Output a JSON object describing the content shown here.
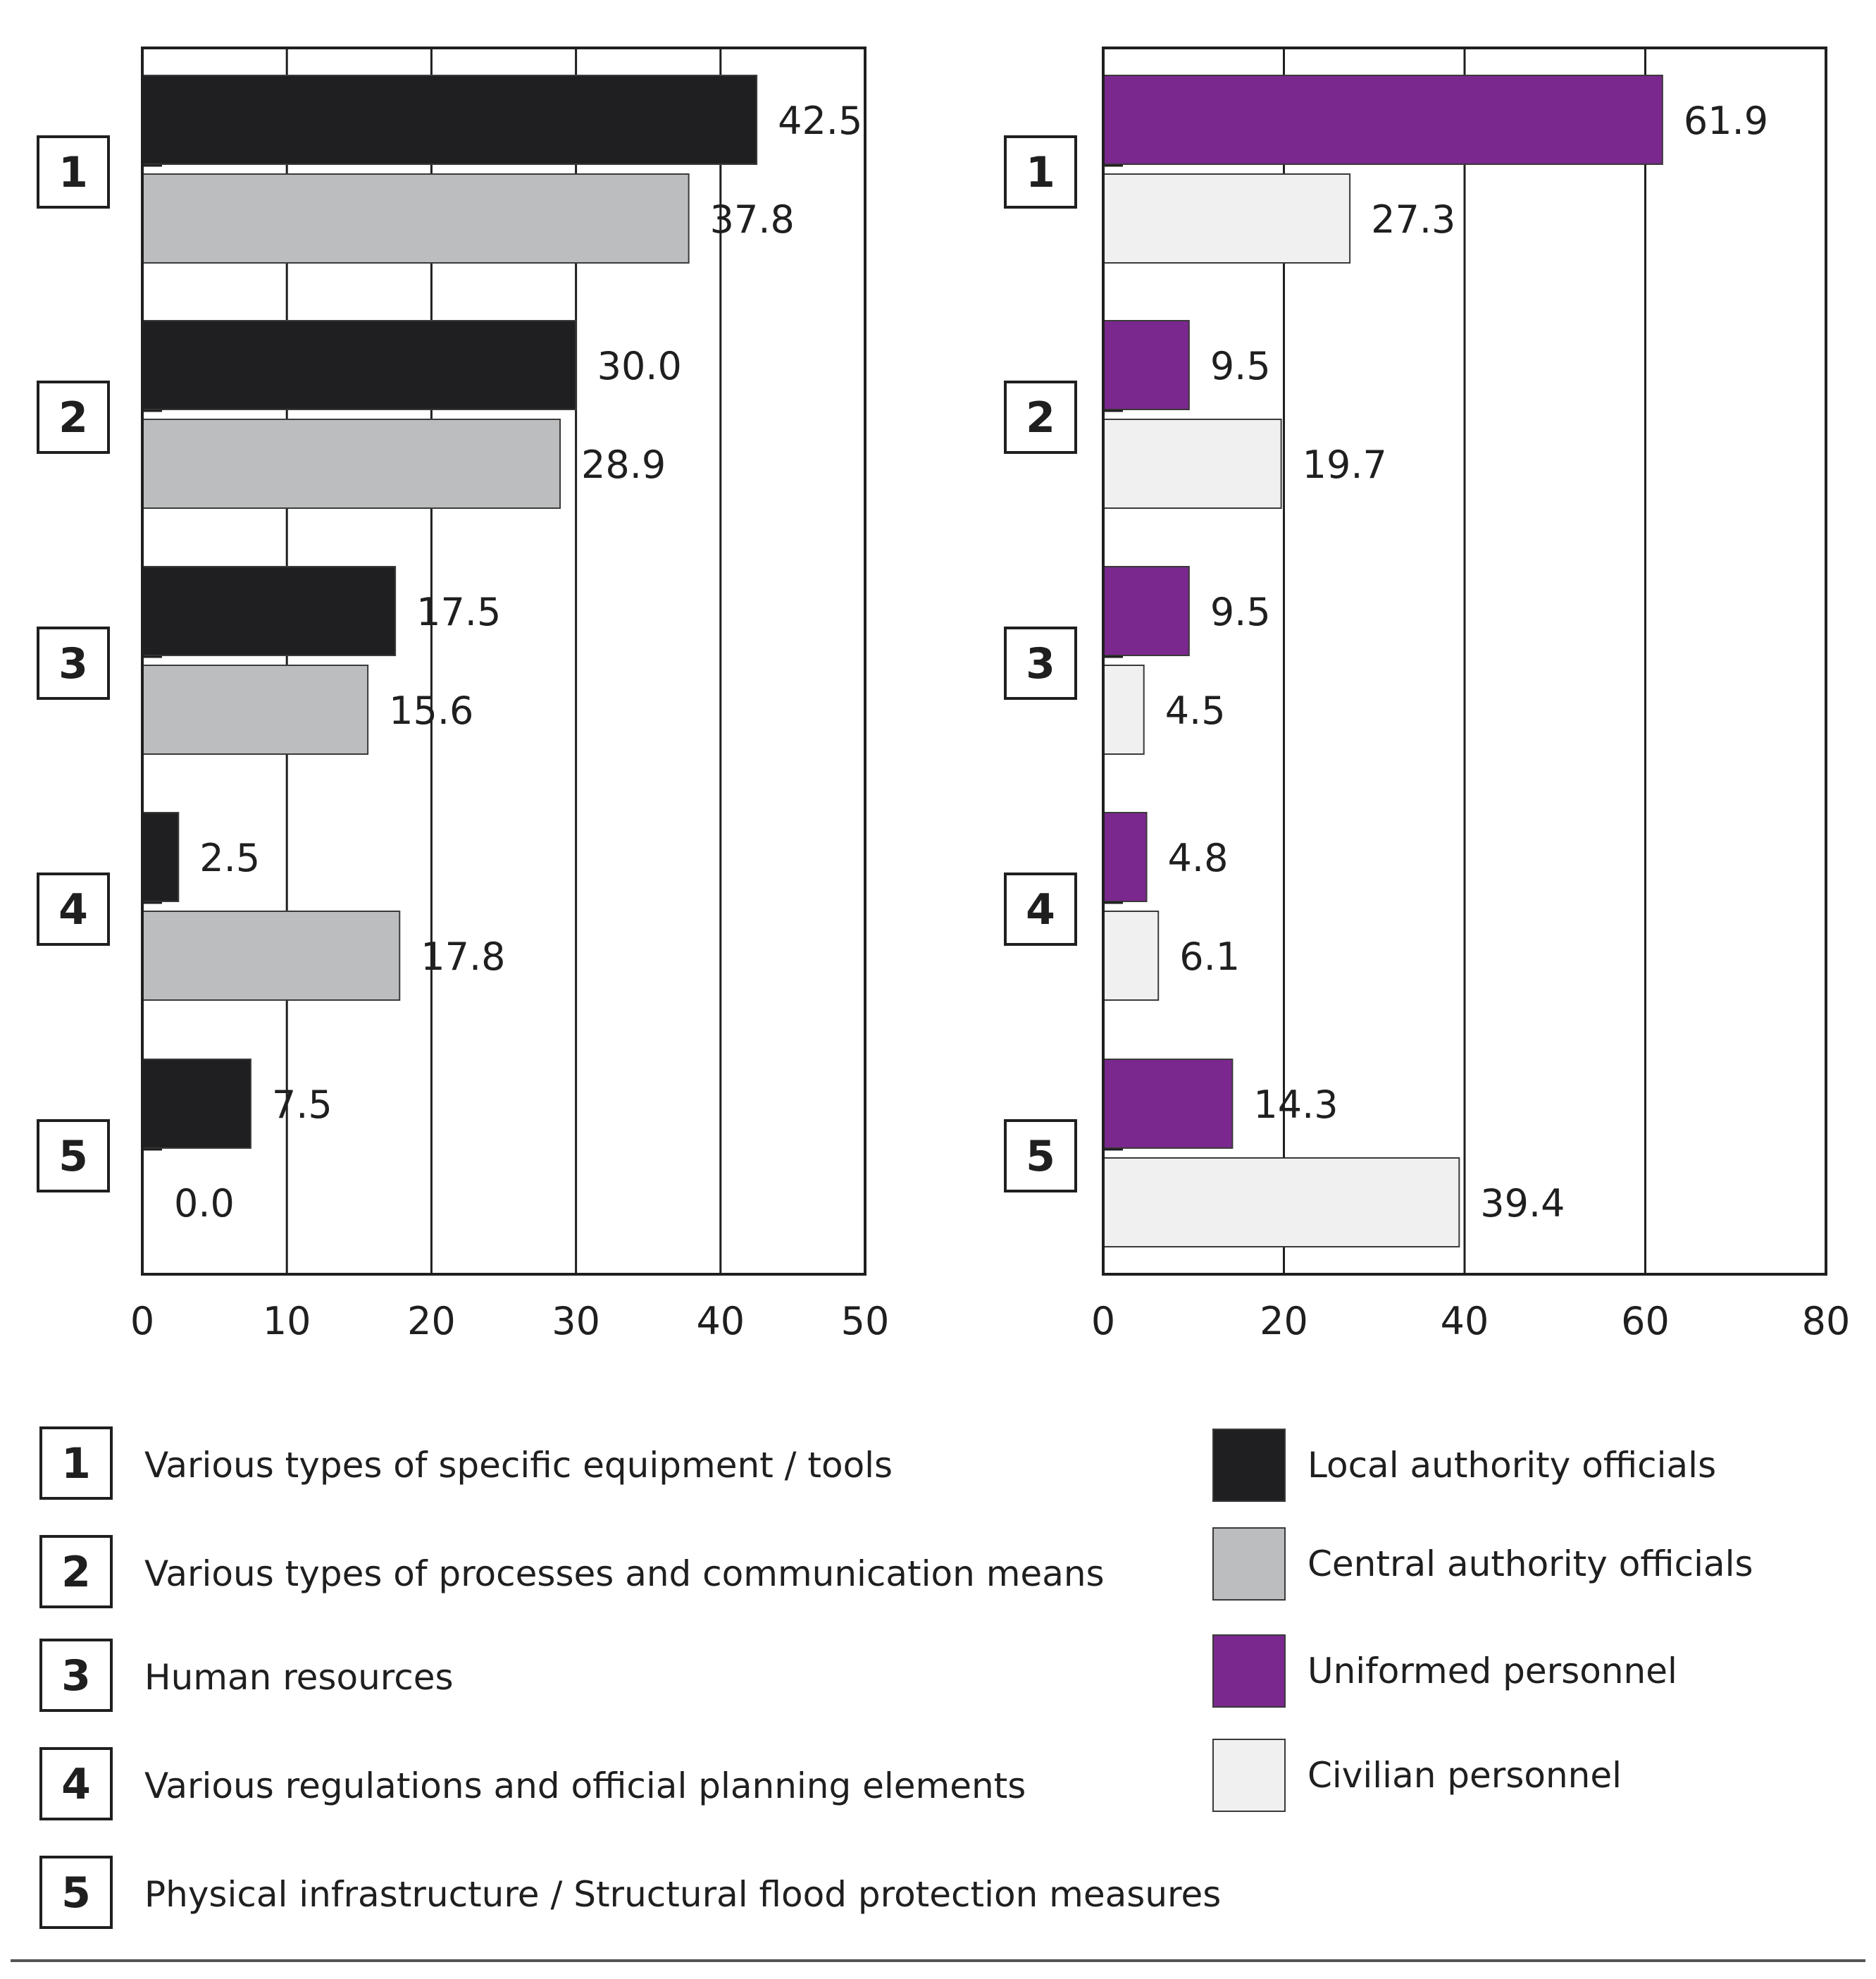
{
  "chart_data": [
    {
      "type": "bar",
      "orientation": "horizontal",
      "categories": [
        "1",
        "2",
        "3",
        "4",
        "5"
      ],
      "series": [
        {
          "name": "Local authority officials",
          "values": [
            42.5,
            30.0,
            17.5,
            2.5,
            7.5
          ],
          "labels": [
            "42.5",
            "30.0",
            "17.5",
            "2.5",
            "7.5"
          ]
        },
        {
          "name": "Central authority officials",
          "values": [
            37.8,
            28.9,
            15.6,
            17.8,
            0.0
          ],
          "labels": [
            "37.8",
            "28.9",
            "15.6",
            "17.8",
            "0.0"
          ]
        }
      ],
      "xlim": [
        0,
        50
      ],
      "xticks": [
        "0",
        "10",
        "20",
        "30",
        "40",
        "50"
      ],
      "grid": true
    },
    {
      "type": "bar",
      "orientation": "horizontal",
      "categories": [
        "1",
        "2",
        "3",
        "4",
        "5"
      ],
      "series": [
        {
          "name": "Uniformed personnel",
          "values": [
            61.9,
            9.5,
            9.5,
            4.8,
            14.3
          ],
          "labels": [
            "61.9",
            "9.5",
            "9.5",
            "4.8",
            "14.3"
          ]
        },
        {
          "name": "Civilian personnel",
          "values": [
            27.3,
            19.7,
            4.5,
            6.1,
            39.4
          ],
          "labels": [
            "27.3",
            "19.7",
            "4.5",
            "6.1",
            "39.4"
          ]
        }
      ],
      "xlim": [
        0,
        80
      ],
      "xticks": [
        "0",
        "20",
        "40",
        "60",
        "80"
      ],
      "grid": true
    }
  ],
  "categories_legend": [
    {
      "num": "1",
      "text": "Various types of specific equipment / tools"
    },
    {
      "num": "2",
      "text": "Various types of processes and communication means"
    },
    {
      "num": "3",
      "text": "Human resources"
    },
    {
      "num": "4",
      "text": "Various regulations and official planning elements"
    },
    {
      "num": "5",
      "text": "Physical infrastructure / Structural flood protection measures"
    }
  ],
  "series_legend": [
    {
      "name": "Local authority officials",
      "color": "#1f1f21"
    },
    {
      "name": "Central authority officials",
      "color": "#bcbdbf"
    },
    {
      "name": "Uniformed personnel",
      "color": "#7b288e"
    },
    {
      "name": "Civilian personnel",
      "color": "#f0f0f0"
    }
  ]
}
